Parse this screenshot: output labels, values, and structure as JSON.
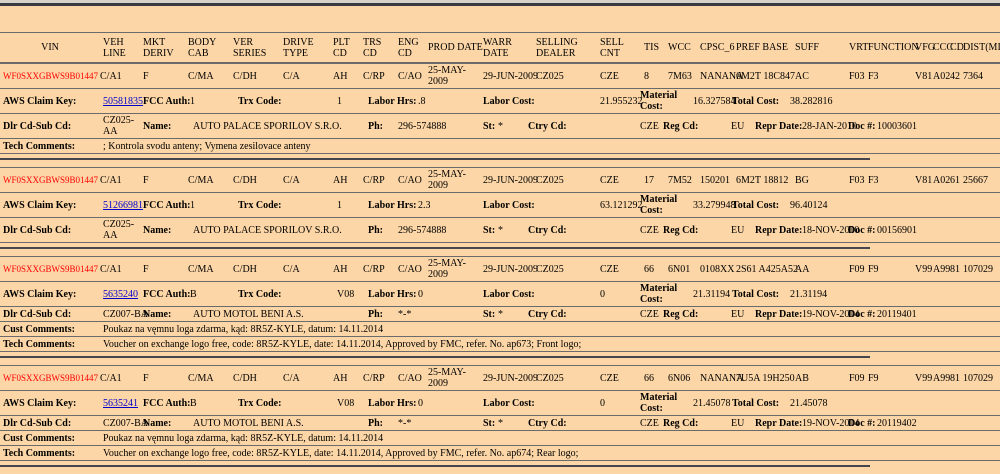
{
  "colors": {
    "background": "#fcd6a6",
    "vin_red": "#ff0000",
    "link_blue": "#0000cc",
    "rule_dark": "#46464e",
    "row_border": "#6b6b6b"
  },
  "header": {
    "columns": [
      "VIN",
      "VEH LINE",
      "MKT DERIV",
      "BODY CAB",
      "VER SERIES",
      "DRIVE TYPE",
      "PLT CD",
      "TRS CD",
      "ENG CD",
      "PROD DATE",
      "WARR DATE",
      "SELLING DEALER",
      "SELL CNT",
      "TIS",
      "WCC",
      "CPSC_6",
      "PREF BASE",
      "SUFF",
      "VRT",
      "FUNCTION",
      "VFG",
      "CCC",
      "CD",
      "DIST(MI"
    ]
  },
  "labels": {
    "aws_claim_key": "AWS Claim Key:",
    "fcc_auth": "FCC Auth:",
    "trx_code": "Trx Code:",
    "labor_hrs": "Labor Hrs:",
    "labor_cost": "Labor Cost:",
    "material_cost": "Material Cost:",
    "total_cost": "Total Cost:",
    "dlr_cd_sub_cd": "Dlr Cd-Sub Cd:",
    "name": "Name:",
    "ph": "Ph:",
    "st": "St:",
    "ctry_cd": "Ctry Cd:",
    "reg_cd": "Reg Cd:",
    "repr_date": "Repr Date:",
    "doc_num": "Doc #:",
    "cust_comments": "Cust Comments:",
    "tech_comments": "Tech Comments:"
  },
  "records": [
    {
      "vin": "WF0SXXGBWS9B01447",
      "veh_line": "C/A1",
      "mkt_deriv": "F",
      "body_cab": "C/MA",
      "ver_series": "C/DH",
      "drive_type": "C/A",
      "plt_cd": "AH",
      "trs_cd": "C/RP",
      "eng_cd": "C/AO",
      "prod_date": "25-MAY-2009",
      "warr_date": "29-JUN-2009",
      "selling_dealer": "CZ025",
      "sell_cnt": "CZE",
      "tis": "8",
      "wcc": "7M63",
      "cpsc_6": "NANANA",
      "pref_base": "6M2T 18C847",
      "suff": "AC",
      "vrt": "F03",
      "function": "F3",
      "vfg": "V81",
      "ccc": "A02",
      "cd": "42",
      "dist": "7364",
      "claim_key": "50581835",
      "fcc_auth": "1",
      "trx_code": "1",
      "labor_hrs": ".8",
      "labor_cost": "21.955232",
      "material_cost": "16.327584",
      "total_cost": "38.282816",
      "dlr_cd_sub_cd": "CZ025-AA",
      "dealer_name": "AUTO PALACE SPORILOV S.R.O.",
      "ph": "296-574888",
      "st": "*",
      "ctry_cd": "CZE",
      "reg_cd": "EU",
      "repr_date": "28-JAN-2010",
      "doc_num": "10003601",
      "tech_comments": "; Kontrola svodu anteny; Vymena zesilovace anteny"
    },
    {
      "vin": "WF0SXXGBWS9B01447",
      "veh_line": "C/A1",
      "mkt_deriv": "F",
      "body_cab": "C/MA",
      "ver_series": "C/DH",
      "drive_type": "C/A",
      "plt_cd": "AH",
      "trs_cd": "C/RP",
      "eng_cd": "C/AO",
      "prod_date": "25-MAY-2009",
      "warr_date": "29-JUN-2009",
      "selling_dealer": "CZ025",
      "sell_cnt": "CZE",
      "tis": "17",
      "wcc": "7M52",
      "cpsc_6": "150201",
      "pref_base": "6M2T 18812",
      "suff": "BG",
      "vrt": "F03",
      "function": "F3",
      "vfg": "V81",
      "ccc": "A02",
      "cd": "61",
      "dist": "25667",
      "claim_key": "51266981",
      "fcc_auth": "1",
      "trx_code": "1",
      "labor_hrs": "2.3",
      "labor_cost": "63.121292",
      "material_cost": "33.279948",
      "total_cost": "96.40124",
      "dlr_cd_sub_cd": "CZ025-AA",
      "dealer_name": "AUTO PALACE SPORILOV S.R.O.",
      "ph": "296-574888",
      "st": "*",
      "ctry_cd": "CZE",
      "reg_cd": "EU",
      "repr_date": "18-NOV-2010",
      "doc_num": "00156901"
    },
    {
      "vin": "WF0SXXGBWS9B01447",
      "veh_line": "C/A1",
      "mkt_deriv": "F",
      "body_cab": "C/MA",
      "ver_series": "C/DH",
      "drive_type": "C/A",
      "plt_cd": "AH",
      "trs_cd": "C/RP",
      "eng_cd": "C/AO",
      "prod_date": "25-MAY-2009",
      "warr_date": "29-JUN-2009",
      "selling_dealer": "CZ025",
      "sell_cnt": "CZE",
      "tis": "66",
      "wcc": "6N01",
      "cpsc_6": "0108XX",
      "pref_base": "2S61 A425A52",
      "suff": "AA",
      "vrt": "F09",
      "function": "F9",
      "vfg": "V99",
      "ccc": "A99",
      "cd": "81",
      "dist": "107029",
      "claim_key": "5635240",
      "fcc_auth": "B",
      "trx_code": "V08",
      "labor_hrs": "0",
      "labor_cost": "0",
      "material_cost": "21.31194",
      "total_cost": "21.31194",
      "dlr_cd_sub_cd": "CZ007-BA",
      "dealer_name": "AUTO MOTOL BENI A.S.",
      "ph": "*-*",
      "st": "*",
      "ctry_cd": "CZE",
      "reg_cd": "EU",
      "repr_date": "19-NOV-2014",
      "doc_num": "20119401",
      "cust_comments": "Poukaz na vęmnu loga zdarma, kąd: 8R5Z-KYLE, datum: 14.11.2014",
      "tech_comments": "Voucher on exchange logo free, code: 8R5Z-KYLE, date: 14.11.2014, Approved by FMC, refer. No. ap673; Front logo;"
    },
    {
      "vin": "WF0SXXGBWS9B01447",
      "veh_line": "C/A1",
      "mkt_deriv": "F",
      "body_cab": "C/MA",
      "ver_series": "C/DH",
      "drive_type": "C/A",
      "plt_cd": "AH",
      "trs_cd": "C/RP",
      "eng_cd": "C/AO",
      "prod_date": "25-MAY-2009",
      "warr_date": "29-JUN-2009",
      "selling_dealer": "CZ025",
      "sell_cnt": "CZE",
      "tis": "66",
      "wcc": "6N06",
      "cpsc_6": "NANANA",
      "pref_base": "7U5A 19H250",
      "suff": "AB",
      "vrt": "F09",
      "function": "F9",
      "vfg": "V99",
      "ccc": "A99",
      "cd": "81",
      "dist": "107029",
      "claim_key": "5635241",
      "fcc_auth": "B",
      "trx_code": "V08",
      "labor_hrs": "0",
      "labor_cost": "0",
      "material_cost": "21.45078",
      "total_cost": "21.45078",
      "dlr_cd_sub_cd": "CZ007-BA",
      "dealer_name": "AUTO MOTOL BENI A.S.",
      "ph": "*-*",
      "st": "*",
      "ctry_cd": "CZE",
      "reg_cd": "EU",
      "repr_date": "19-NOV-2014",
      "doc_num": "20119402",
      "cust_comments": "Poukaz na vęmnu loga zdarma, kąd: 8R5Z-KYLE, datum: 14.11.2014",
      "tech_comments": "Voucher on exchange logo free, code: 8R5Z-KYLE, date: 14.11.2014, Approved by FMC, refer. No. ap674; Rear logo;"
    }
  ]
}
